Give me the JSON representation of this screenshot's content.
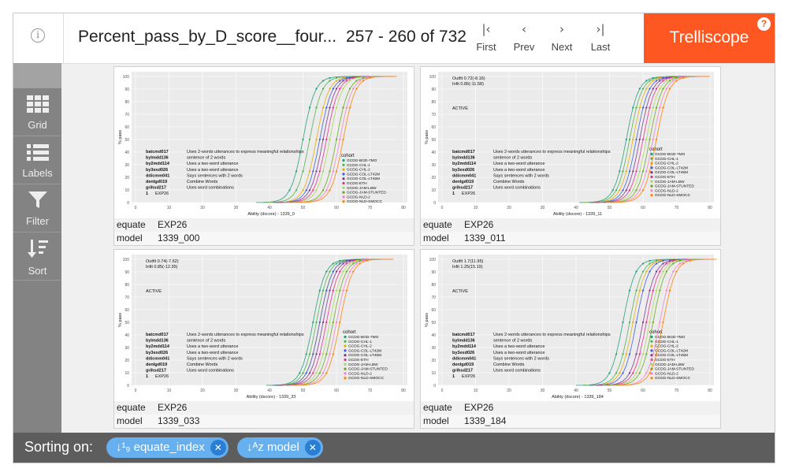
{
  "header": {
    "info_label": "i",
    "title": "Percent_pass_by_D_score__four...",
    "range": "257 - 260 of 732",
    "nav": [
      {
        "glyph": "|‹",
        "label": "First",
        "icon": "first-page-icon"
      },
      {
        "glyph": "‹",
        "label": "Prev",
        "icon": "prev-page-icon"
      },
      {
        "glyph": "›",
        "label": "Next",
        "icon": "next-page-icon"
      },
      {
        "glyph": "›|",
        "label": "Last",
        "icon": "last-page-icon"
      }
    ],
    "brand": "Trelliscope",
    "help": "?"
  },
  "sidebar": {
    "items": [
      {
        "label": "Grid",
        "icon": "grid-icon"
      },
      {
        "label": "Labels",
        "icon": "list-icon"
      },
      {
        "label": "Filter",
        "icon": "filter-icon"
      },
      {
        "label": "Sort",
        "icon": "sort-icon"
      }
    ]
  },
  "panels": [
    {
      "equate": "EXP26",
      "model": "1339_000",
      "plot": {
        "xlabel": "Ability (dscore) - 1339_0",
        "stats": []
      }
    },
    {
      "equate": "EXP26",
      "model": "1339_011",
      "plot": {
        "xlabel": "Ability (dscore) - 1339_11",
        "stats": [
          "Outfit 0.72(-8.16)",
          "Infit  0.86(-11.58)"
        ],
        "active": "ACTIVE"
      }
    },
    {
      "equate": "EXP26",
      "model": "1339_033",
      "plot": {
        "xlabel": "Ability (dscore) - 1339_33",
        "stats": [
          "Outfit 0.74(-7.62)",
          "Infit  0.85(-12.35)"
        ],
        "active": "ACTIVE"
      }
    },
    {
      "equate": "EXP26",
      "model": "1339_184",
      "plot": {
        "xlabel": "Ability (dscore) - 1339_184",
        "stats": [
          "Outfit 1.7(11.95)",
          "Infit  1.25(15.19)"
        ],
        "active": "ACTIVE"
      }
    }
  ],
  "cog_labels": {
    "equate": "equate",
    "model": "model"
  },
  "plot_common": {
    "ylabel": "% pass",
    "yticks": [
      "0",
      "10",
      "20",
      "30",
      "40",
      "50",
      "60",
      "70",
      "80",
      "90",
      "100"
    ],
    "xticks": [
      "0",
      "10",
      "20",
      "30",
      "40",
      "50",
      "60",
      "70",
      "80"
    ],
    "legend_title": "cohort",
    "legend": [
      "GCDG-BGD-7MO",
      "GCDG-CHL-1",
      "GCDG-CHL-2",
      "GCDG-COL-LT42M",
      "GCDG-COL-LT45M",
      "GCDG-ETH",
      "GCDG-JAM-LBW",
      "GCDG-JAM-STUNTED",
      "GCDG-NLD-2",
      "GCDG-NLD-SMOCC"
    ],
    "items": [
      {
        "code": "batcmd017",
        "desc": "Uses 2-words utterances to express meaningful relationships"
      },
      {
        "code": "bylmdd136",
        "desc": "sentence of 2 words"
      },
      {
        "code": "by2mdd114",
        "desc": "Uses a two-word utterance"
      },
      {
        "code": "by3exd026",
        "desc": "Uses a two-word utterance"
      },
      {
        "code": "ddicmm041",
        "desc": "Says sentences with 2 words"
      },
      {
        "code": "denlgd019",
        "desc": "Combine Words"
      },
      {
        "code": "grihsd217",
        "desc": "Uses word combinations"
      },
      {
        "code": "1",
        "desc": "EXP26"
      }
    ],
    "colors": [
      "#1b9e77",
      "#4daf4a",
      "#e6ab02",
      "#3b5bdb",
      "#7b3294",
      "#e7298a",
      "#a6d854",
      "#66a61e",
      "#f781bf",
      "#ff7f00"
    ]
  },
  "footer": {
    "label": "Sorting on:",
    "chips": [
      {
        "glyph": "↓¹₉",
        "label": "equate_index",
        "icon": "sort-numeric-icon"
      },
      {
        "glyph": "↓ᴬz",
        "label": "model",
        "icon": "sort-alpha-icon"
      }
    ],
    "remove_glyph": "✕"
  }
}
